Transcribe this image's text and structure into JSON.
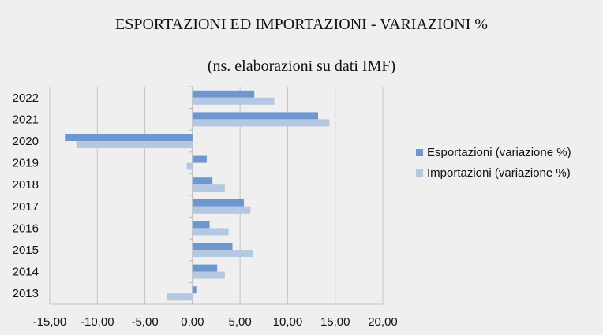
{
  "chart_data": {
    "type": "bar",
    "orientation": "horizontal",
    "title": "ESPORTAZIONI ED IMPORTAZIONI - VARIAZIONI %",
    "subtitle": "(ns. elaborazioni su dati IMF)",
    "categories": [
      "2022",
      "2021",
      "2020",
      "2019",
      "2018",
      "2017",
      "2016",
      "2015",
      "2014",
      "2013"
    ],
    "series": [
      {
        "name": "Esportazioni (variazione %)",
        "color": "#6f97cf",
        "values": [
          6.5,
          13.2,
          -13.4,
          1.5,
          2.1,
          5.4,
          1.8,
          4.2,
          2.6,
          0.4
        ]
      },
      {
        "name": "Importazioni (variazione %)",
        "color": "#b5c8e3",
        "values": [
          8.6,
          14.4,
          -12.2,
          -0.6,
          3.4,
          6.1,
          3.8,
          6.4,
          3.4,
          -2.7
        ]
      }
    ],
    "xlim": [
      -15,
      20
    ],
    "xticks": [
      "-15,00",
      "-10,00",
      "-5,00",
      "0,00",
      "5,00",
      "10,00",
      "15,00",
      "20,00"
    ],
    "grid": true,
    "legend_position": "right"
  }
}
